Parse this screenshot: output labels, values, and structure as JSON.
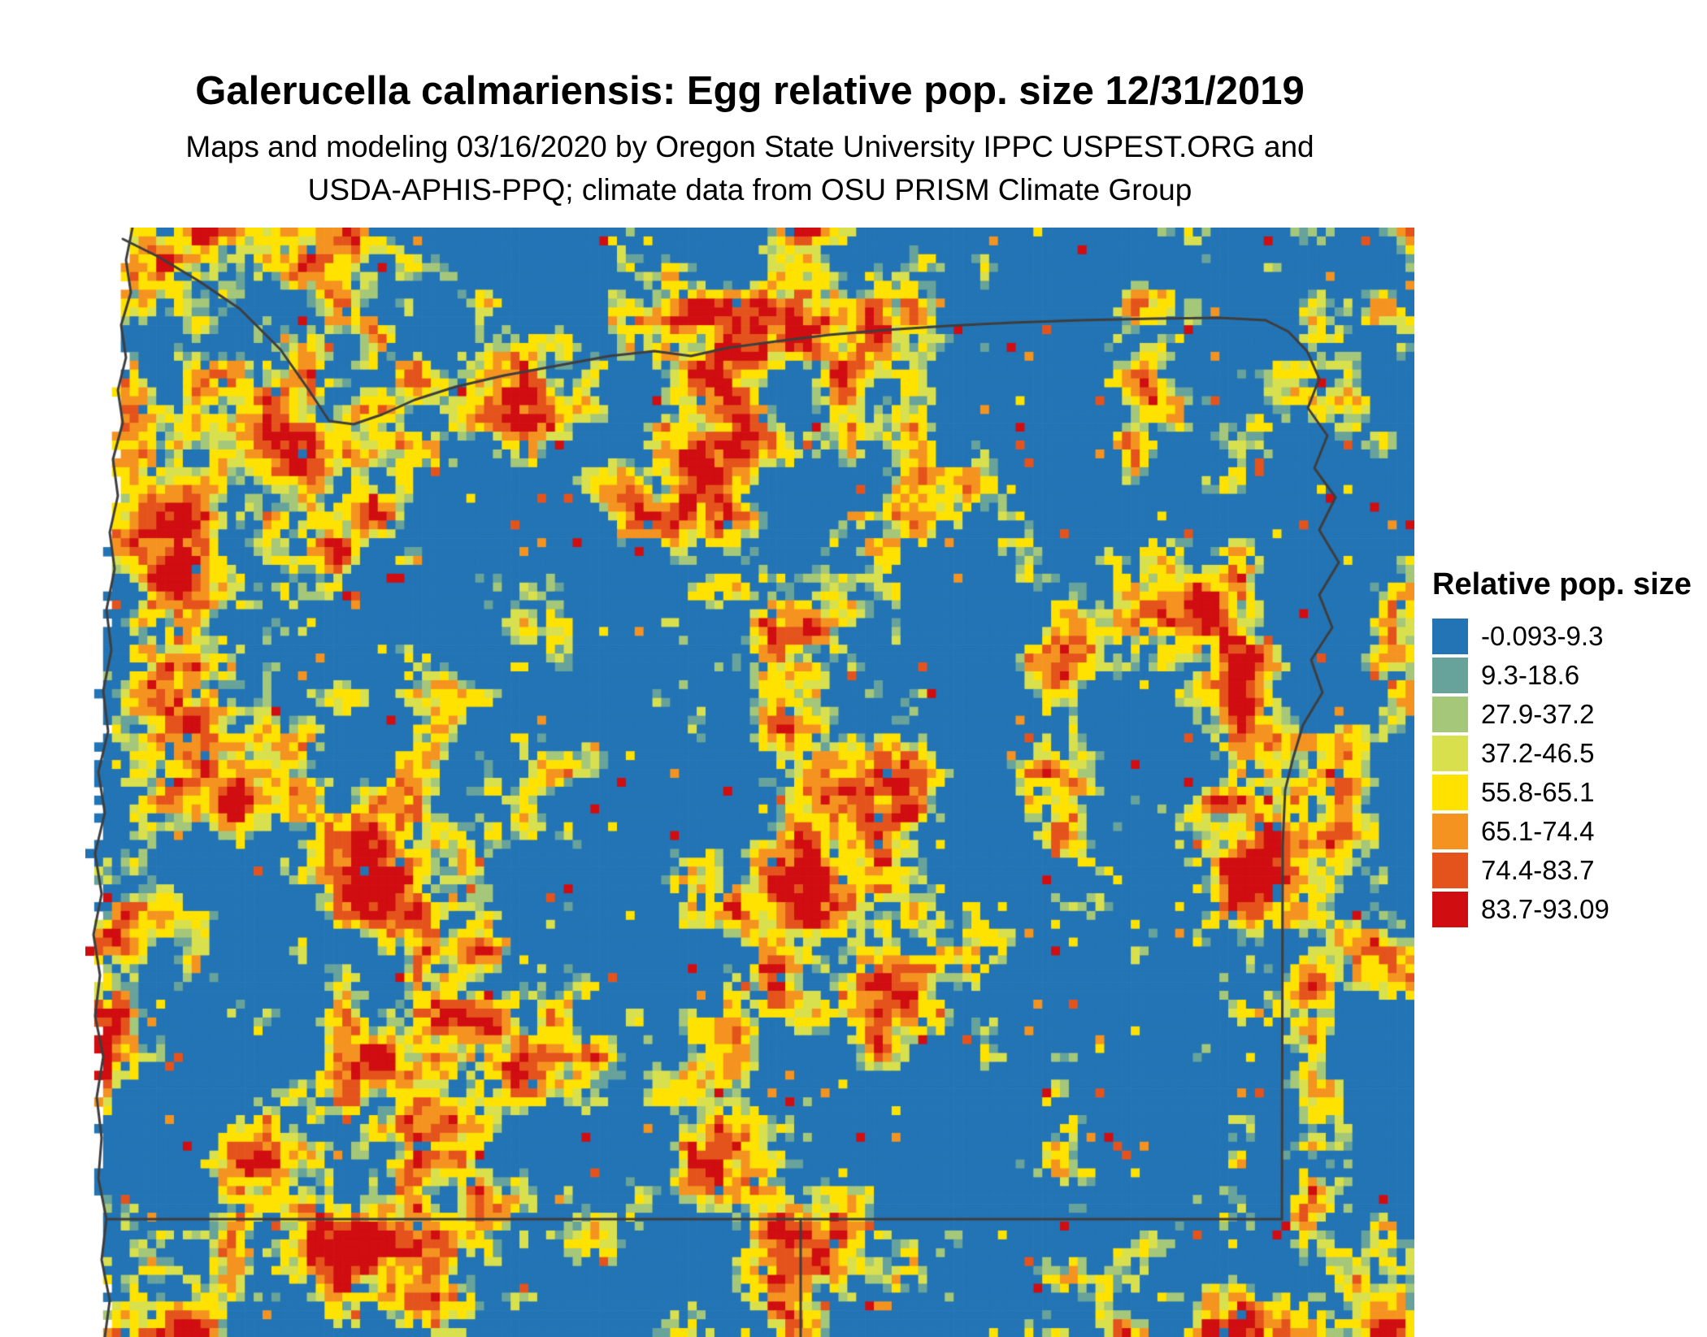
{
  "title": "Galerucella calmariensis: Egg relative pop. size 12/31/2019",
  "subtitle_line1": "Maps and modeling 03/16/2020 by Oregon State University IPPC USPEST.ORG and",
  "subtitle_line2": "USDA-APHIS-PPQ; climate data from OSU PRISM Climate Group",
  "legend": {
    "title": "Relative pop. size",
    "items": [
      {
        "label": "-0.093-9.3",
        "color": "#2274b5"
      },
      {
        "label": "9.3-18.6",
        "color": "#67a39b"
      },
      {
        "label": "27.9-37.2",
        "color": "#a5c779"
      },
      {
        "label": "37.2-46.5",
        "color": "#d9e04e"
      },
      {
        "label": "55.8-65.1",
        "color": "#ffe200"
      },
      {
        "label": "65.1-74.4",
        "color": "#f59320"
      },
      {
        "label": "74.4-83.7",
        "color": "#e5531c"
      },
      {
        "label": "83.7-93.09",
        "color": "#d00d10"
      }
    ]
  },
  "map": {
    "ocean_color": "#ffffff",
    "boundary_color": "#3e3e3e",
    "boundaries": {
      "coastline": [
        [
          58,
          0
        ],
        [
          50,
          40
        ],
        [
          56,
          80
        ],
        [
          44,
          120
        ],
        [
          50,
          160
        ],
        [
          40,
          200
        ],
        [
          46,
          240
        ],
        [
          34,
          285
        ],
        [
          40,
          330
        ],
        [
          30,
          375
        ],
        [
          36,
          420
        ],
        [
          26,
          470
        ],
        [
          32,
          520
        ],
        [
          22,
          570
        ],
        [
          28,
          620
        ],
        [
          16,
          670
        ],
        [
          24,
          720
        ],
        [
          12,
          770
        ],
        [
          20,
          820
        ],
        [
          10,
          870
        ],
        [
          18,
          920
        ],
        [
          12,
          970
        ],
        [
          22,
          1020
        ],
        [
          14,
          1070
        ],
        [
          20,
          1120
        ],
        [
          16,
          1170
        ],
        [
          26,
          1220
        ],
        [
          20,
          1270
        ],
        [
          30,
          1320
        ],
        [
          24,
          1365
        ]
      ],
      "north_border": [
        [
          46,
          14
        ],
        [
          90,
          36
        ],
        [
          140,
          66
        ],
        [
          190,
          100
        ],
        [
          240,
          150
        ],
        [
          275,
          200
        ],
        [
          300,
          238
        ],
        [
          330,
          242
        ],
        [
          365,
          230
        ],
        [
          405,
          212
        ],
        [
          455,
          196
        ],
        [
          515,
          182
        ],
        [
          580,
          170
        ],
        [
          645,
          158
        ],
        [
          700,
          152
        ],
        [
          745,
          158
        ],
        [
          790,
          148
        ],
        [
          850,
          140
        ],
        [
          915,
          132
        ],
        [
          985,
          126
        ],
        [
          1060,
          121
        ],
        [
          1140,
          117
        ],
        [
          1225,
          114
        ],
        [
          1315,
          112
        ],
        [
          1395,
          111
        ],
        [
          1452,
          114
        ]
      ],
      "east_border": [
        [
          1452,
          114
        ],
        [
          1480,
          128
        ],
        [
          1503,
          152
        ],
        [
          1518,
          186
        ],
        [
          1504,
          222
        ],
        [
          1528,
          256
        ],
        [
          1512,
          296
        ],
        [
          1538,
          332
        ],
        [
          1518,
          372
        ],
        [
          1542,
          412
        ],
        [
          1518,
          452
        ],
        [
          1534,
          492
        ],
        [
          1508,
          532
        ],
        [
          1522,
          572
        ],
        [
          1498,
          612
        ],
        [
          1486,
          652
        ],
        [
          1476,
          692
        ],
        [
          1473,
          760
        ],
        [
          1472,
          1220
        ]
      ],
      "south_border": [
        [
          1472,
          1220
        ],
        [
          26,
          1220
        ]
      ],
      "state_divider": [
        [
          880,
          1220
        ],
        [
          880,
          1365
        ]
      ]
    }
  }
}
